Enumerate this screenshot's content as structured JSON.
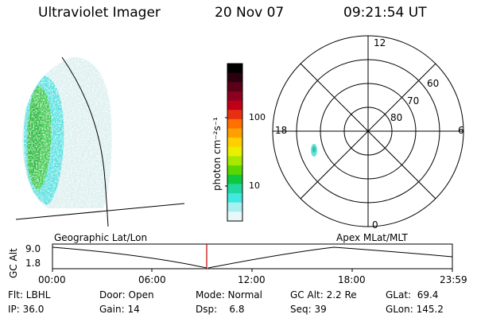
{
  "header": {
    "title": "Ultraviolet Imager",
    "date": "20 Nov 07",
    "time": "09:21:54 UT"
  },
  "colorbar": {
    "unit_label": "photon cm⁻²s⁻¹",
    "tick_100": "100",
    "tick_10": "10",
    "colors": [
      "#000000",
      "#2a0010",
      "#5a0018",
      "#8c0020",
      "#c00018",
      "#e83010",
      "#ff7000",
      "#ffa000",
      "#ffd000",
      "#e8f000",
      "#a8e800",
      "#58d800",
      "#10c840",
      "#20d8a0",
      "#40e8e0",
      "#a8f0f0",
      "#e8f8f8"
    ]
  },
  "polar": {
    "mlt_12": "12",
    "mlt_18": "18",
    "mlt_6": "6",
    "mlt_0": "0",
    "lat_60": "60",
    "lat_70": "70",
    "lat_80": "80"
  },
  "timeline": {
    "y_axis_label": "GC Alt",
    "y_top": "9.0",
    "y_bottom": "1.8",
    "left_title": "Geographic Lat/Lon",
    "right_title": "Apex  MLat/MLT",
    "marker_color": "#c00000",
    "ticks": [
      "00:00",
      "06:00",
      "12:00",
      "18:00",
      "23:59"
    ]
  },
  "status": {
    "flt": "Flt: LBHL",
    "door": "Door: Open",
    "mode": "Mode: Normal",
    "gc_alt": "GC Alt: 2.2 Re",
    "glat": "GLat:  69.4",
    "ip": "IP: 36.0",
    "gain": "Gain: 14",
    "dsp": "Dsp:    6.8",
    "seq": "Seq: 39",
    "glon": "GLon: 145.2"
  }
}
